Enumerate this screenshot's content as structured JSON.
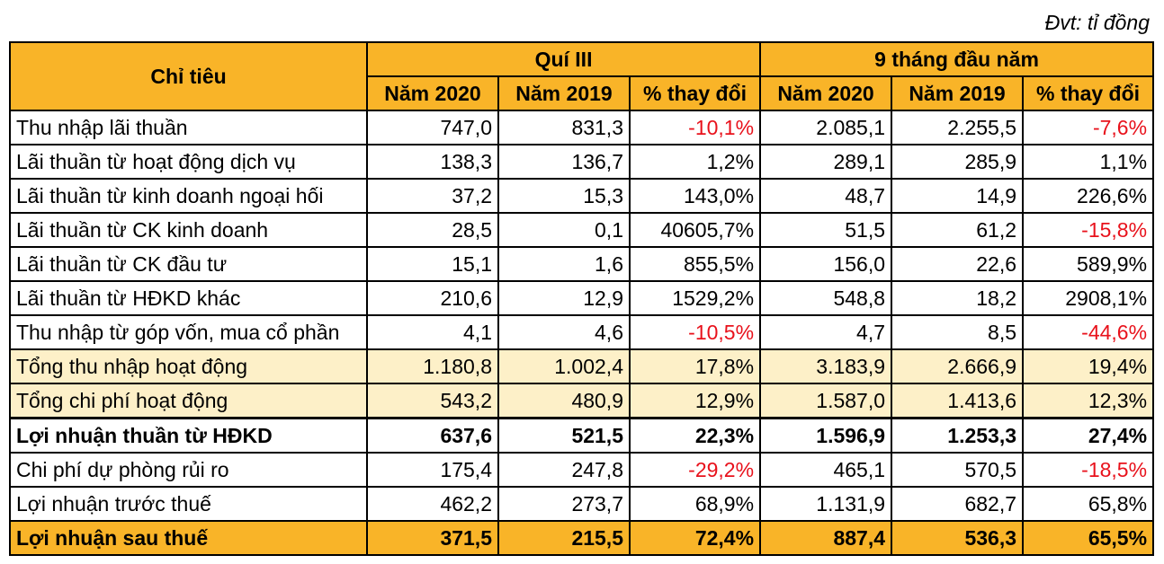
{
  "unit_label": "Đvt: tỉ đồng",
  "header": {
    "row_label": "Chỉ tiêu",
    "group1": "Quí III",
    "group2": "9 tháng đầu năm",
    "subcols": [
      "Năm 2020",
      "Năm 2019",
      "% thay đổi",
      "Năm 2020",
      "Năm 2019",
      "% thay đổi"
    ]
  },
  "rows": [
    {
      "label": "Thu nhập lãi thuần",
      "cells": [
        "747,0",
        "831,3",
        "-10,1%",
        "2.085,1",
        "2.255,5",
        "-7,6%"
      ]
    },
    {
      "label": "Lãi thuần từ hoạt động dịch vụ",
      "cells": [
        "138,3",
        "136,7",
        "1,2%",
        "289,1",
        "285,9",
        "1,1%"
      ]
    },
    {
      "label": "Lãi thuần từ kinh doanh ngoại hối",
      "cells": [
        "37,2",
        "15,3",
        "143,0%",
        "48,7",
        "14,9",
        "226,6%"
      ]
    },
    {
      "label": "Lãi thuần từ CK kinh doanh",
      "cells": [
        "28,5",
        "0,1",
        "40605,7%",
        "51,5",
        "61,2",
        "-15,8%"
      ]
    },
    {
      "label": "Lãi thuần từ CK đầu tư",
      "cells": [
        "15,1",
        "1,6",
        "855,5%",
        "156,0",
        "22,6",
        "589,9%"
      ]
    },
    {
      "label": "Lãi thuần từ HĐKD khác",
      "cells": [
        "210,6",
        "12,9",
        "1529,2%",
        "548,8",
        "18,2",
        "2908,1%"
      ]
    },
    {
      "label": "Thu nhập từ góp vốn, mua cổ phần",
      "cells": [
        "4,1",
        "4,6",
        "-10,5%",
        "4,7",
        "8,5",
        "-44,6%"
      ]
    },
    {
      "label": "Tổng thu nhập hoạt động",
      "cells": [
        "1.180,8",
        "1.002,4",
        "17,8%",
        "3.183,9",
        "2.666,9",
        "19,4%"
      ]
    },
    {
      "label": "Tổng chi phí hoạt động",
      "cells": [
        "543,2",
        "480,9",
        "12,9%",
        "1.587,0",
        "1.413,6",
        "12,3%"
      ]
    },
    {
      "label": "Lợi nhuận thuần từ HĐKD",
      "cells": [
        "637,6",
        "521,5",
        "22,3%",
        "1.596,9",
        "1.253,3",
        "27,4%"
      ]
    },
    {
      "label": "Chi phí dự phòng rủi ro",
      "cells": [
        "175,4",
        "247,8",
        "-29,2%",
        "465,1",
        "570,5",
        "-18,5%"
      ]
    },
    {
      "label": "Lợi nhuận trước thuế",
      "cells": [
        "462,2",
        "273,7",
        "68,9%",
        "1.131,9",
        "682,7",
        "65,8%"
      ]
    },
    {
      "label": "Lợi nhuận sau thuế",
      "cells": [
        "371,5",
        "215,5",
        "72,4%",
        "887,4",
        "536,3",
        "65,5%"
      ]
    }
  ],
  "colors": {
    "header_bg": "#f9b428",
    "highlight_bg": "#fdf0c8",
    "negative_text": "#e8111b"
  }
}
